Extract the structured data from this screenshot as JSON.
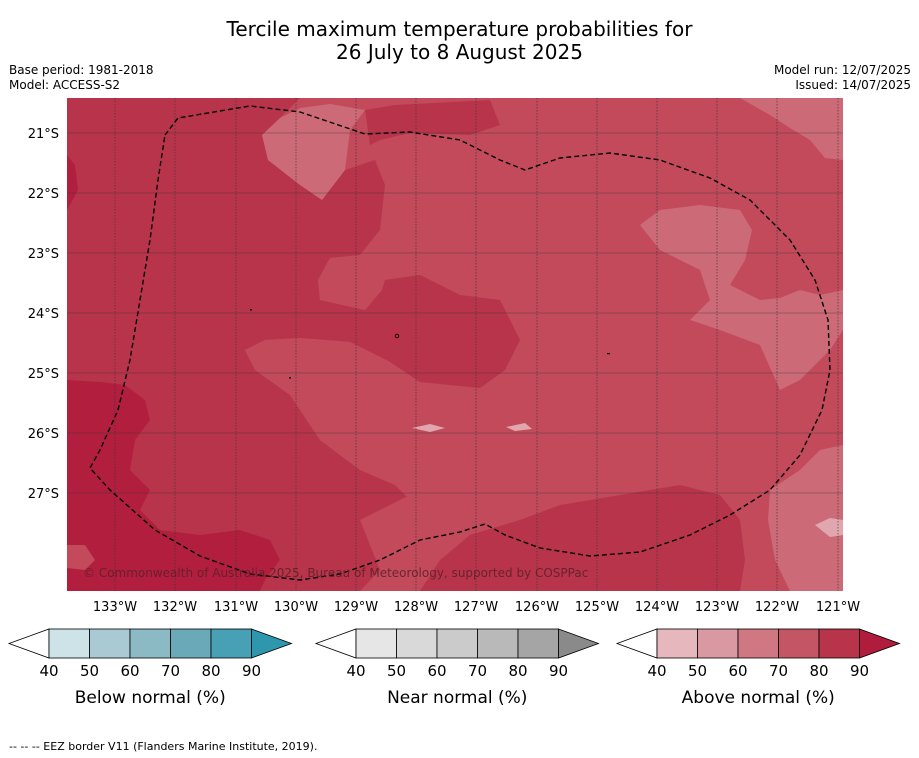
{
  "title": {
    "line1": "Tercile maximum temperature probabilities for",
    "line2": "26 July to 8 August 2025"
  },
  "meta_left": {
    "base_period": "Base period: 1981-2018",
    "model": "Model: ACCESS-S2"
  },
  "meta_right": {
    "model_run": "Model run: 12/07/2025",
    "issued": "Issued: 14/07/2025"
  },
  "map": {
    "lat_labels": [
      "21°S",
      "22°S",
      "23°S",
      "24°S",
      "25°S",
      "26°S",
      "27°S"
    ],
    "lon_labels": [
      "133°W",
      "132°W",
      "131°W",
      "130°W",
      "129°W",
      "128°W",
      "127°W",
      "126°W",
      "125°W",
      "124°W",
      "123°W",
      "122°W",
      "121°W"
    ],
    "copyright": "© Commonwealth of Australia 2025, Bureau of Meteorology, supported by COSPPac",
    "colors": {
      "above_80_90": "#b8344a",
      "above_70_80": "#c24a5b",
      "above_60_70": "#cc6b77",
      "above_90_plus": "#b21f3e"
    }
  },
  "colorbars": [
    {
      "name": "below",
      "label": "Below normal (%)",
      "ticks": [
        "40",
        "50",
        "60",
        "70",
        "80",
        "90"
      ],
      "colors": [
        "#ffffff",
        "#cde3e8",
        "#a9cad2",
        "#8bb9c4",
        "#6aa9b8",
        "#47a0b3",
        "#2e97ae"
      ]
    },
    {
      "name": "near",
      "label": "Near normal (%)",
      "ticks": [
        "40",
        "50",
        "60",
        "70",
        "80",
        "90"
      ],
      "colors": [
        "#ffffff",
        "#e6e6e6",
        "#d9d9d9",
        "#cbcbcb",
        "#b9b9b9",
        "#a5a5a5",
        "#8a8a8a"
      ]
    },
    {
      "name": "above",
      "label": "Above normal (%)",
      "ticks": [
        "40",
        "50",
        "60",
        "70",
        "80",
        "90"
      ],
      "colors": [
        "#ffffff",
        "#e6b8be",
        "#d999a2",
        "#cf7883",
        "#c45565",
        "#b8344a",
        "#b01d3c"
      ]
    }
  ],
  "footnote": "--  --  -- EEZ border V11 (Flanders Marine Institute, 2019)."
}
